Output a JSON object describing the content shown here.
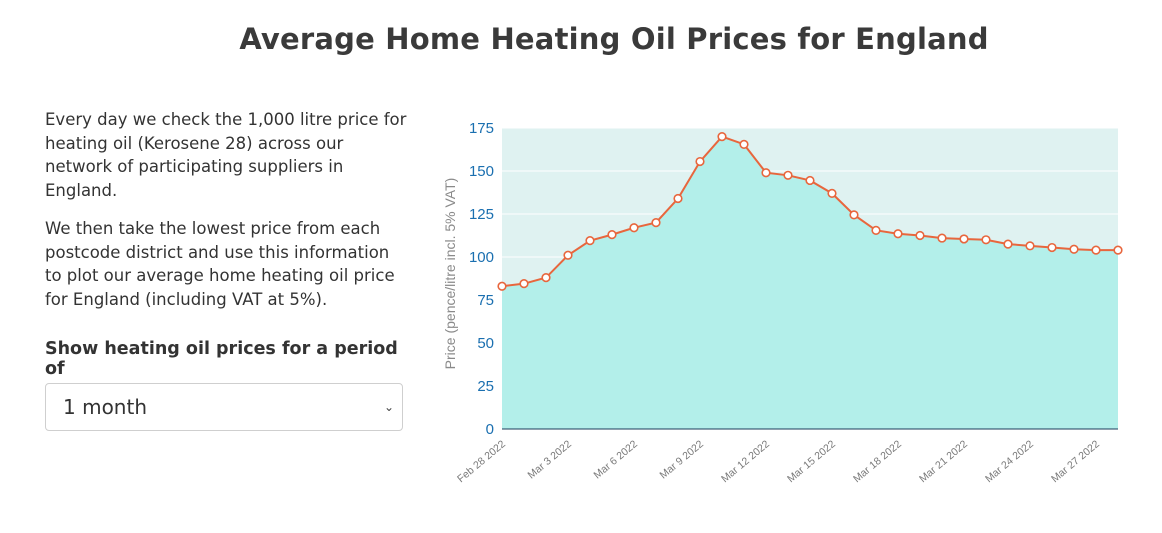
{
  "page": {
    "title": "Average Home Heating Oil Prices for England",
    "paragraph1": "Every day we check the 1,000 litre price for heating oil (Kerosene 28) across our network of participating suppliers in England.",
    "paragraph2": "We then take the lowest price from each postcode district and use this information to plot our average home heating oil price for England (including VAT at 5%).",
    "period_label": "Show heating oil prices for a period of",
    "period_selected": "1 month"
  },
  "colors": {
    "line": "#e8663d",
    "area": "#b3efea",
    "plot_bg": "#dff2f1",
    "axis_text": "#1a6fb0",
    "ylabel_text": "#8a8a8a"
  },
  "chart_data": {
    "type": "area",
    "title": "",
    "ylabel": "Price (pence/litre incl. 5% VAT)",
    "xlabel": "",
    "ylim": [
      0,
      175
    ],
    "yticks": [
      0,
      25,
      50,
      75,
      100,
      125,
      150,
      175
    ],
    "x": [
      "Feb 28 2022",
      "Mar 1 2022",
      "Mar 2 2022",
      "Mar 3 2022",
      "Mar 4 2022",
      "Mar 5 2022",
      "Mar 6 2022",
      "Mar 7 2022",
      "Mar 8 2022",
      "Mar 9 2022",
      "Mar 10 2022",
      "Mar 11 2022",
      "Mar 12 2022",
      "Mar 13 2022",
      "Mar 14 2022",
      "Mar 15 2022",
      "Mar 16 2022",
      "Mar 17 2022",
      "Mar 18 2022",
      "Mar 19 2022",
      "Mar 20 2022",
      "Mar 21 2022",
      "Mar 22 2022",
      "Mar 23 2022",
      "Mar 24 2022",
      "Mar 25 2022",
      "Mar 26 2022",
      "Mar 27 2022",
      "Mar 28 2022"
    ],
    "x_tick_labels": [
      "Feb 28 2022",
      "Mar 3 2022",
      "Mar 6 2022",
      "Mar 9 2022",
      "Mar 12 2022",
      "Mar 15 2022",
      "Mar 18 2022",
      "Mar 21 2022",
      "Mar 24 2022",
      "Mar 27 2022"
    ],
    "series": [
      {
        "values": [
          83,
          84.5,
          88,
          101,
          109.5,
          113,
          117,
          120,
          134,
          155.5,
          170,
          165.5,
          149,
          147.5,
          144.5,
          137,
          124.5,
          115.5,
          113.5,
          112.5,
          111,
          110.5,
          110,
          107.5,
          106.5,
          105.5,
          104.5,
          104,
          104
        ]
      }
    ],
    "grid": true,
    "legend": "none"
  }
}
